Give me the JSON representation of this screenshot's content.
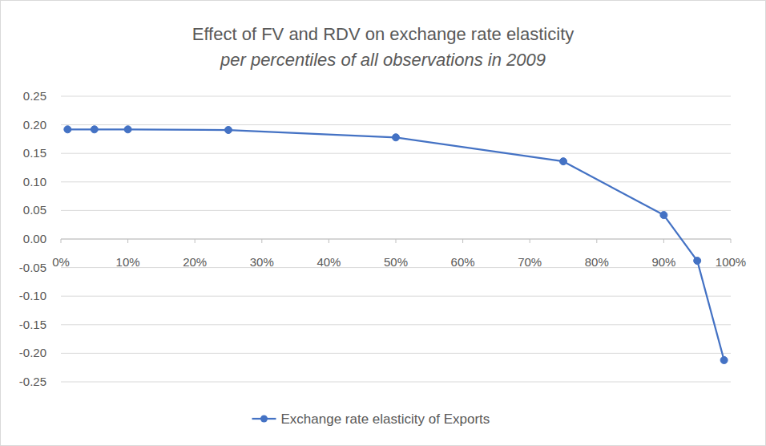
{
  "chart_data": {
    "type": "line",
    "title": "Effect of FV and RDV on exchange rate elasticity",
    "subtitle": "per percentiles of all observations in 2009",
    "x": [
      1,
      5,
      10,
      25,
      50,
      75,
      90,
      95,
      99
    ],
    "series": [
      {
        "name": "Exchange rate elasticity of Exports",
        "color": "#4472c4",
        "marker": "circle",
        "line_style": "solid",
        "values": [
          0.192,
          0.192,
          0.192,
          0.191,
          0.178,
          0.136,
          0.042,
          -0.038,
          -0.212
        ]
      }
    ],
    "xlim": [
      0,
      100
    ],
    "xticks": [
      {
        "value": 0,
        "label": "0%"
      },
      {
        "value": 10,
        "label": "10%"
      },
      {
        "value": 20,
        "label": "20%"
      },
      {
        "value": 30,
        "label": "30%"
      },
      {
        "value": 40,
        "label": "40%"
      },
      {
        "value": 50,
        "label": "50%"
      },
      {
        "value": 60,
        "label": "60%"
      },
      {
        "value": 70,
        "label": "70%"
      },
      {
        "value": 80,
        "label": "80%"
      },
      {
        "value": 90,
        "label": "90%"
      },
      {
        "value": 100,
        "label": "100%"
      }
    ],
    "ylim": [
      -0.25,
      0.25
    ],
    "yticks": [
      {
        "value": 0.25,
        "label": "0.25"
      },
      {
        "value": 0.2,
        "label": "0.20"
      },
      {
        "value": 0.15,
        "label": "0.15"
      },
      {
        "value": 0.1,
        "label": "0.10"
      },
      {
        "value": 0.05,
        "label": "0.05"
      },
      {
        "value": 0,
        "label": "0.00"
      },
      {
        "value": -0.05,
        "label": "-0.05"
      },
      {
        "value": -0.1,
        "label": "-0.10"
      },
      {
        "value": -0.15,
        "label": "-0.15"
      },
      {
        "value": -0.2,
        "label": "-0.20"
      },
      {
        "value": -0.25,
        "label": "-0.25"
      }
    ],
    "grid": true,
    "legend": "bottom"
  }
}
